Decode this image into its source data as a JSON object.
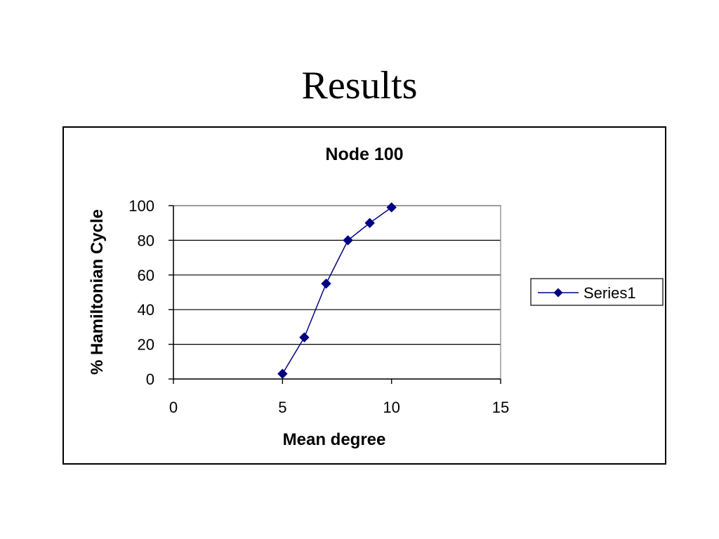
{
  "slide": {
    "title": "Results"
  },
  "chart_data": {
    "type": "scatter",
    "title": "Node 100",
    "xlabel": "Mean degree",
    "ylabel": "% Hamiltonian Cycle",
    "xlim": [
      0,
      15
    ],
    "ylim": [
      0,
      100
    ],
    "xticks": [
      0,
      5,
      10,
      15
    ],
    "yticks": [
      0,
      20,
      40,
      60,
      80,
      100
    ],
    "grid": "horizontal",
    "legend": "right",
    "series": [
      {
        "name": "Series1",
        "color": "#000080",
        "marker": "diamond",
        "line": true,
        "x": [
          5,
          6,
          7,
          8,
          9,
          10
        ],
        "y": [
          3,
          24,
          55,
          80,
          90,
          99
        ]
      }
    ]
  }
}
